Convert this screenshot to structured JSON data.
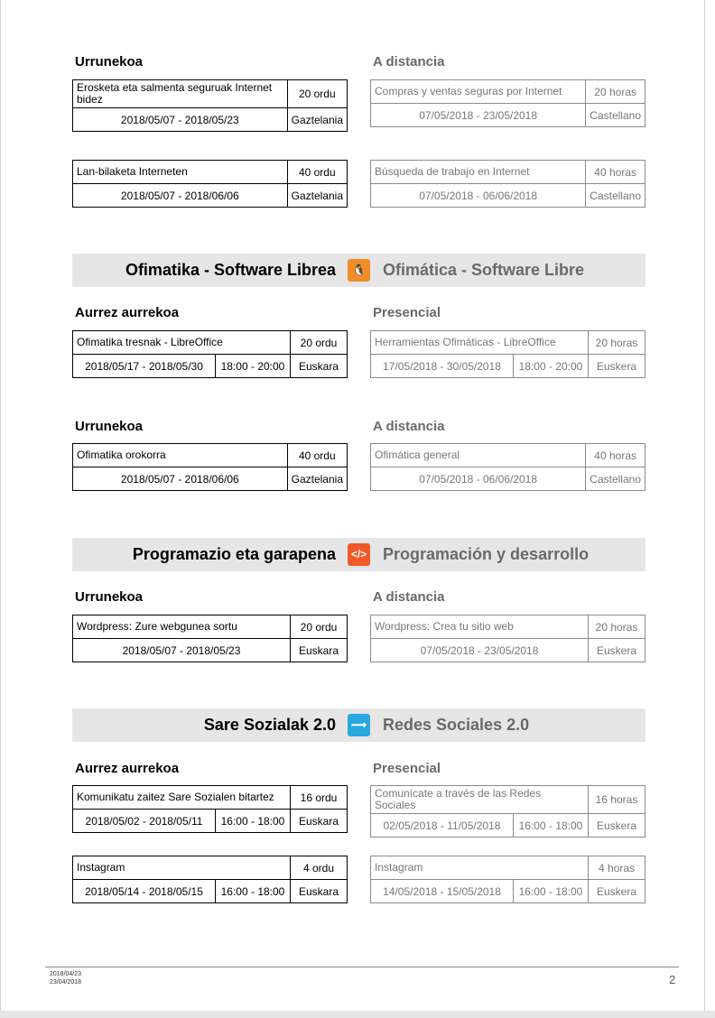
{
  "colors": {
    "office_icon": "#f28c28",
    "dev_icon": "#f05a28",
    "social_icon": "#29a8e0"
  },
  "sections": [
    {
      "heading_eu": "Urrunekoa",
      "heading_es": "A distancia",
      "courses": [
        {
          "eu": {
            "name": "Erosketa eta salmenta seguruak Internet bidez",
            "hours": "20 ordu",
            "dates": "2018/05/07 - 2018/05/23",
            "lang": "Gaztelania"
          },
          "es": {
            "name": "Compras y ventas seguras por Internet",
            "hours": "20 horas",
            "dates": "07/05/2018 - 23/05/2018",
            "lang": "Castellano"
          }
        },
        {
          "eu": {
            "name": "Lan-bilaketa Interneten",
            "hours": "40 ordu",
            "dates": "2018/05/07 - 2018/06/06",
            "lang": "Gaztelania"
          },
          "es": {
            "name": "Búsqueda de trabajo en Internet",
            "hours": "40 horas",
            "dates": "07/05/2018 - 06/06/2018",
            "lang": "Castellano"
          }
        }
      ]
    },
    {
      "banner": {
        "eu": "Ofimatika - Software Librea",
        "es": "Ofimática - Software Libre",
        "icon": "penguin-icon",
        "glyph": "🐧",
        "color_key": "office_icon"
      },
      "heading_eu": "Aurrez aurrekoa",
      "heading_es": "Presencial",
      "courses": [
        {
          "eu": {
            "name": "Ofimatika tresnak - LibreOffice",
            "hours": "20 ordu",
            "dates": "2018/05/17 - 2018/05/30",
            "time": "18:00 - 20:00",
            "lang": "Euskara"
          },
          "es": {
            "name": "Herramientas Ofimáticas - LibreOffice",
            "hours": "20 horas",
            "dates": "17/05/2018 - 30/05/2018",
            "time": "18:00 - 20:00",
            "lang": "Euskera"
          }
        }
      ]
    },
    {
      "heading_eu": "Urrunekoa",
      "heading_es": "A distancia",
      "courses": [
        {
          "eu": {
            "name": "Ofimatika orokorra",
            "hours": "40 ordu",
            "dates": "2018/05/07 - 2018/06/06",
            "lang": "Gaztelania"
          },
          "es": {
            "name": "Ofimática general",
            "hours": "40 horas",
            "dates": "07/05/2018 - 06/06/2018",
            "lang": "Castellano"
          }
        }
      ]
    },
    {
      "banner": {
        "eu": "Programazio eta garapena",
        "es": "Programación y desarrollo",
        "icon": "code-icon",
        "glyph": "</>",
        "color_key": "dev_icon"
      },
      "heading_eu": "Urrunekoa",
      "heading_es": "A distancia",
      "courses": [
        {
          "eu": {
            "name": "Wordpress: Zure webgunea sortu",
            "hours": "20 ordu",
            "dates": "2018/05/07 - 2018/05/23",
            "lang": "Euskara"
          },
          "es": {
            "name": "Wordpress: Crea tu sitio web",
            "hours": "20 horas",
            "dates": "07/05/2018 - 23/05/2018",
            "lang": "Euskera"
          }
        }
      ]
    },
    {
      "banner": {
        "eu": "Sare Sozialak 2.0",
        "es": "Redes Sociales 2.0",
        "icon": "share-network-icon",
        "glyph": "⟿",
        "color_key": "social_icon"
      },
      "heading_eu": "Aurrez aurrekoa",
      "heading_es": "Presencial",
      "courses": [
        {
          "eu": {
            "name": "Komunikatu zaitez Sare Sozialen bitartez",
            "hours": "16 ordu",
            "dates": "2018/05/02 - 2018/05/11",
            "time": "16:00 - 18:00",
            "lang": "Euskara"
          },
          "es": {
            "name": "Comunícate a través de las Redes Sociales",
            "hours": "16 horas",
            "dates": "02/05/2018 - 11/05/2018",
            "time": "16:00 - 18:00",
            "lang": "Euskera"
          }
        },
        {
          "eu": {
            "name": "Instagram",
            "hours": "4 ordu",
            "dates": "2018/05/14 - 2018/05/15",
            "time": "16:00 - 18:00",
            "lang": "Euskara"
          },
          "es": {
            "name": "Instagram",
            "hours": "4 horas",
            "dates": "14/05/2018 - 15/05/2018",
            "time": "16:00 - 18:00",
            "lang": "Euskera"
          }
        }
      ]
    }
  ],
  "footer": {
    "date_eu": "2018/04/23",
    "date_es": "23/04/2018",
    "page_number": "2"
  }
}
